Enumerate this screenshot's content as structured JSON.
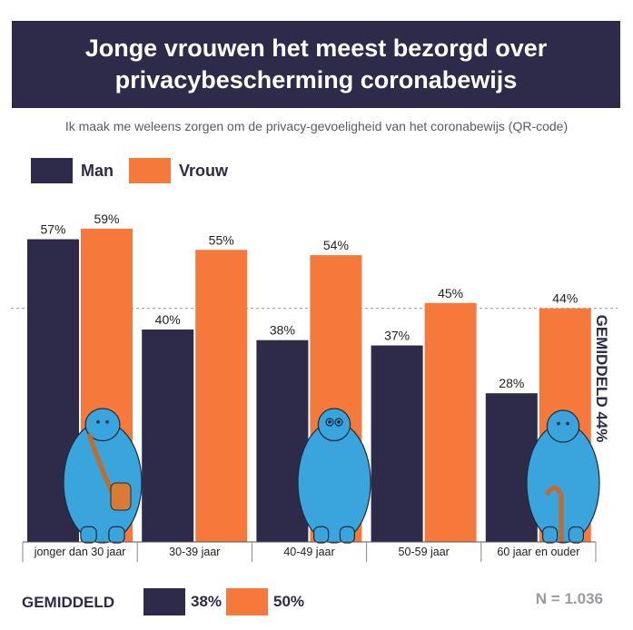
{
  "header": {
    "title": "Jonge vrouwen het meest bezorgd over privacybescherming coronabewijs",
    "subtitle": "Ik maak me weleens zorgen om de privacy-gevoeligheid van het coronabewijs (QR-code)"
  },
  "colors": {
    "man": "#2e2a4a",
    "vrouw": "#f5793a",
    "figure": "#3aa4dc",
    "header_bg": "#2e2a4a"
  },
  "chart_data": {
    "type": "bar",
    "title": "Jonge vrouwen het meest bezorgd over privacybescherming coronabewijs",
    "subtitle": "Ik maak me weleens zorgen om de privacy-gevoeligheid van het coronabewijs (QR-code)",
    "categories": [
      "jonger dan 30 jaar",
      "30-39 jaar",
      "40-49 jaar",
      "50-59 jaar",
      "60 jaar en ouder"
    ],
    "series": [
      {
        "name": "Man",
        "values": [
          57,
          40,
          38,
          37,
          28
        ],
        "labels": [
          "57%",
          "40%",
          "38%",
          "37%",
          "28%"
        ]
      },
      {
        "name": "Vrouw",
        "values": [
          59,
          55,
          54,
          45,
          44
        ],
        "labels": [
          "59%",
          "55%",
          "54%",
          "45%",
          "44%"
        ]
      }
    ],
    "ylim": [
      0,
      60
    ],
    "grid": false,
    "legend": "top-left",
    "reference_line": {
      "value": 44,
      "label": "GEMIDDELD 44%"
    }
  },
  "footer": {
    "label": "GEMIDDELD",
    "man_value": "38%",
    "vrouw_value": "50%",
    "n_label": "N = 1.036"
  }
}
